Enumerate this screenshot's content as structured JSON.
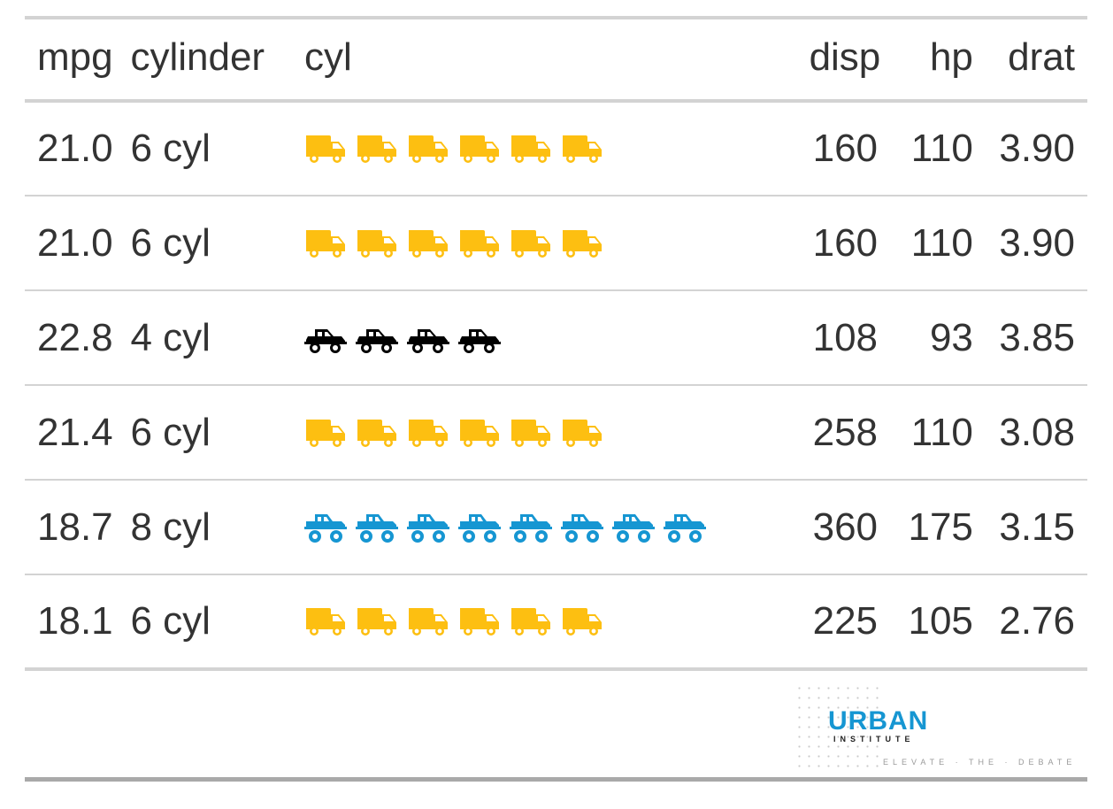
{
  "columns": {
    "mpg": "mpg",
    "cylinder": "cylinder",
    "cyl": "cyl",
    "disp": "disp",
    "hp": "hp",
    "drat": "drat"
  },
  "icon_styles": {
    "truck-icon": "#fdbf11",
    "car-side-icon": "#000000",
    "monster-truck-icon": "#1696d2"
  },
  "rows": [
    {
      "mpg": "21.0",
      "cylinder": "6 cyl",
      "cyl_icon": "truck-icon",
      "cyl_count": 6,
      "disp": "160",
      "hp": "110",
      "drat": "3.90"
    },
    {
      "mpg": "21.0",
      "cylinder": "6 cyl",
      "cyl_icon": "truck-icon",
      "cyl_count": 6,
      "disp": "160",
      "hp": "110",
      "drat": "3.90"
    },
    {
      "mpg": "22.8",
      "cylinder": "4 cyl",
      "cyl_icon": "car-side-icon",
      "cyl_count": 4,
      "disp": "108",
      "hp": "93",
      "drat": "3.85"
    },
    {
      "mpg": "21.4",
      "cylinder": "6 cyl",
      "cyl_icon": "truck-icon",
      "cyl_count": 6,
      "disp": "258",
      "hp": "110",
      "drat": "3.08"
    },
    {
      "mpg": "18.7",
      "cylinder": "8 cyl",
      "cyl_icon": "monster-truck-icon",
      "cyl_count": 8,
      "disp": "360",
      "hp": "175",
      "drat": "3.15"
    },
    {
      "mpg": "18.1",
      "cylinder": "6 cyl",
      "cyl_icon": "truck-icon",
      "cyl_count": 6,
      "disp": "225",
      "hp": "105",
      "drat": "2.76"
    }
  ],
  "logo": {
    "name": "URBAN",
    "subname": "INSTITUTE",
    "tagline": "ELEVATE · THE · DEBATE"
  }
}
